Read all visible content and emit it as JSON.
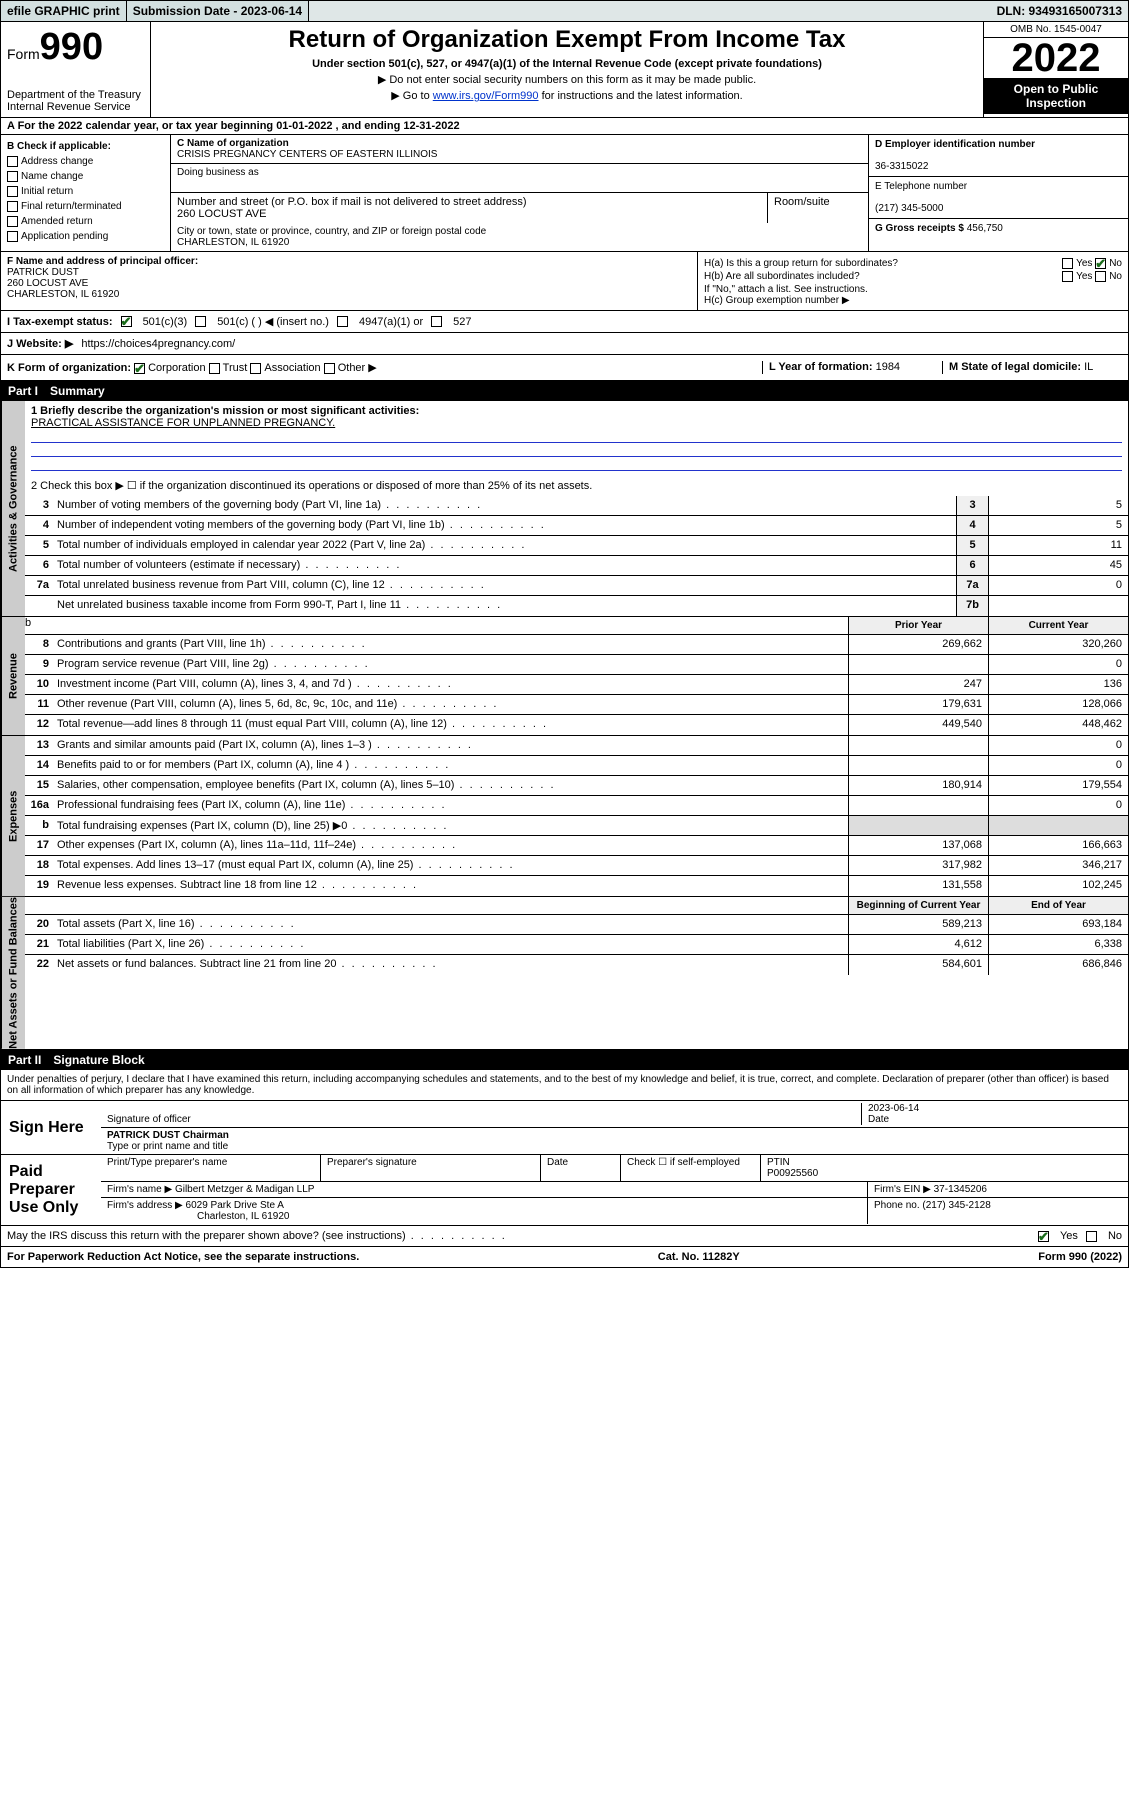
{
  "topbar": {
    "efile": "efile GRAPHIC print",
    "submission_label": "Submission Date - 2023-06-14",
    "dln": "DLN: 93493165007313"
  },
  "header": {
    "form_label": "Form",
    "form_number": "990",
    "dept": "Department of the Treasury",
    "irs": "Internal Revenue Service",
    "title": "Return of Organization Exempt From Income Tax",
    "subtitle": "Under section 501(c), 527, or 4947(a)(1) of the Internal Revenue Code (except private foundations)",
    "note1": "▶ Do not enter social security numbers on this form as it may be made public.",
    "note2_pre": "▶ Go to ",
    "note2_link": "www.irs.gov/Form990",
    "note2_post": " for instructions and the latest information.",
    "omb": "OMB No. 1545-0047",
    "year": "2022",
    "open_public": "Open to Public Inspection"
  },
  "row_a": "A For the 2022 calendar year, or tax year beginning 01-01-2022    , and ending 12-31-2022",
  "col_b": {
    "label": "B Check if applicable:",
    "items": [
      "Address change",
      "Name change",
      "Initial return",
      "Final return/terminated",
      "Amended return",
      "Application pending"
    ]
  },
  "col_c": {
    "name_label": "C Name of organization",
    "name": "CRISIS PREGNANCY CENTERS OF EASTERN ILLINOIS",
    "dba_label": "Doing business as",
    "street_label": "Number and street (or P.O. box if mail is not delivered to street address)",
    "room_label": "Room/suite",
    "street": "260 LOCUST AVE",
    "city_label": "City or town, state or province, country, and ZIP or foreign postal code",
    "city": "CHARLESTON, IL  61920"
  },
  "col_de": {
    "d_label": "D Employer identification number",
    "ein": "36-3315022",
    "e_label": "E Telephone number",
    "phone": "(217) 345-5000",
    "g_label": "G Gross receipts $",
    "gross": "456,750"
  },
  "col_f": {
    "label": "F Name and address of principal officer:",
    "name": "PATRICK DUST",
    "addr1": "260 LOCUST AVE",
    "addr2": "CHARLESTON, IL  61920"
  },
  "col_h": {
    "ha": "H(a)  Is this a group return for subordinates?",
    "hb": "H(b)  Are all subordinates included?",
    "hb_note": "If \"No,\" attach a list. See instructions.",
    "hc": "H(c)  Group exemption number ▶"
  },
  "row_i": {
    "label": "I   Tax-exempt status:",
    "opt1": "501(c)(3)",
    "opt2": "501(c) (  ) ◀ (insert no.)",
    "opt3": "4947(a)(1) or",
    "opt4": "527"
  },
  "row_j": {
    "label": "J   Website: ▶",
    "value": "https://choices4pregnancy.com/"
  },
  "row_k": {
    "label": "K Form of organization:",
    "opts": [
      "Corporation",
      "Trust",
      "Association",
      "Other ▶"
    ],
    "l_label": "L Year of formation:",
    "l_val": "1984",
    "m_label": "M State of legal domicile:",
    "m_val": "IL"
  },
  "part1": {
    "title": "Part I",
    "name": "Summary",
    "line1_label": "1  Briefly describe the organization's mission or most significant activities:",
    "line1_val": "PRACTICAL ASSISTANCE FOR UNPLANNED PREGNANCY.",
    "line2": "2   Check this box ▶ ☐  if the organization discontinued its operations or disposed of more than 25% of its net assets.",
    "sidelabels": {
      "agov": "Activities & Governance",
      "rev": "Revenue",
      "exp": "Expenses",
      "net": "Net Assets or Fund Balances"
    },
    "rows_single": [
      {
        "n": "3",
        "d": "Number of voting members of the governing body (Part VI, line 1a)",
        "box": "3",
        "v": "5"
      },
      {
        "n": "4",
        "d": "Number of independent voting members of the governing body (Part VI, line 1b)",
        "box": "4",
        "v": "5"
      },
      {
        "n": "5",
        "d": "Total number of individuals employed in calendar year 2022 (Part V, line 2a)",
        "box": "5",
        "v": "11"
      },
      {
        "n": "6",
        "d": "Total number of volunteers (estimate if necessary)",
        "box": "6",
        "v": "45"
      },
      {
        "n": "7a",
        "d": "Total unrelated business revenue from Part VIII, column (C), line 12",
        "box": "7a",
        "v": "0"
      },
      {
        "n": " ",
        "d": "Net unrelated business taxable income from Form 990-T, Part I, line 11",
        "box": "7b",
        "v": ""
      }
    ],
    "col_headers": {
      "prior": "Prior Year",
      "current": "Current Year"
    },
    "rows_rev": [
      {
        "n": "8",
        "d": "Contributions and grants (Part VIII, line 1h)",
        "p": "269,662",
        "c": "320,260"
      },
      {
        "n": "9",
        "d": "Program service revenue (Part VIII, line 2g)",
        "p": "",
        "c": "0"
      },
      {
        "n": "10",
        "d": "Investment income (Part VIII, column (A), lines 3, 4, and 7d )",
        "p": "247",
        "c": "136"
      },
      {
        "n": "11",
        "d": "Other revenue (Part VIII, column (A), lines 5, 6d, 8c, 9c, 10c, and 11e)",
        "p": "179,631",
        "c": "128,066"
      },
      {
        "n": "12",
        "d": "Total revenue—add lines 8 through 11 (must equal Part VIII, column (A), line 12)",
        "p": "449,540",
        "c": "448,462"
      }
    ],
    "rows_exp": [
      {
        "n": "13",
        "d": "Grants and similar amounts paid (Part IX, column (A), lines 1–3 )",
        "p": "",
        "c": "0"
      },
      {
        "n": "14",
        "d": "Benefits paid to or for members (Part IX, column (A), line 4 )",
        "p": "",
        "c": "0"
      },
      {
        "n": "15",
        "d": "Salaries, other compensation, employee benefits (Part IX, column (A), lines 5–10)",
        "p": "180,914",
        "c": "179,554"
      },
      {
        "n": "16a",
        "d": "Professional fundraising fees (Part IX, column (A), line 11e)",
        "p": "",
        "c": "0"
      },
      {
        "n": "b",
        "d": "Total fundraising expenses (Part IX, column (D), line 25) ▶0",
        "p": "",
        "c": "",
        "shade": true
      },
      {
        "n": "17",
        "d": "Other expenses (Part IX, column (A), lines 11a–11d, 11f–24e)",
        "p": "137,068",
        "c": "166,663"
      },
      {
        "n": "18",
        "d": "Total expenses. Add lines 13–17 (must equal Part IX, column (A), line 25)",
        "p": "317,982",
        "c": "346,217"
      },
      {
        "n": "19",
        "d": "Revenue less expenses. Subtract line 18 from line 12",
        "p": "131,558",
        "c": "102,245"
      }
    ],
    "col_headers2": {
      "begin": "Beginning of Current Year",
      "end": "End of Year"
    },
    "rows_net": [
      {
        "n": "20",
        "d": "Total assets (Part X, line 16)",
        "p": "589,213",
        "c": "693,184"
      },
      {
        "n": "21",
        "d": "Total liabilities (Part X, line 26)",
        "p": "4,612",
        "c": "6,338"
      },
      {
        "n": "22",
        "d": "Net assets or fund balances. Subtract line 21 from line 20",
        "p": "584,601",
        "c": "686,846"
      }
    ]
  },
  "part2": {
    "title": "Part II",
    "name": "Signature Block",
    "declaration": "Under penalties of perjury, I declare that I have examined this return, including accompanying schedules and statements, and to the best of my knowledge and belief, it is true, correct, and complete. Declaration of preparer (other than officer) is based on all information of which preparer has any knowledge.",
    "sign_here": "Sign Here",
    "sig_officer": "Signature of officer",
    "sig_date": "2023-06-14",
    "date_label": "Date",
    "officer_name": "PATRICK DUST Chairman",
    "type_name": "Type or print name and title",
    "paid": "Paid Preparer Use Only",
    "prep_name_label": "Print/Type preparer's name",
    "prep_sig_label": "Preparer's signature",
    "check_if": "Check ☐ if self-employed",
    "ptin_label": "PTIN",
    "ptin": "P00925560",
    "firm_name_label": "Firm's name    ▶",
    "firm_name": "Gilbert Metzger & Madigan LLP",
    "firm_ein_label": "Firm's EIN ▶",
    "firm_ein": "37-1345206",
    "firm_addr_label": "Firm's address ▶",
    "firm_addr1": "6029 Park Drive Ste A",
    "firm_addr2": "Charleston, IL  61920",
    "phone_label": "Phone no.",
    "phone": "(217) 345-2128",
    "discuss": "May the IRS discuss this return with the preparer shown above? (see instructions)"
  },
  "footer": {
    "paperwork": "For Paperwork Reduction Act Notice, see the separate instructions.",
    "cat": "Cat. No. 11282Y",
    "form": "Form 990 (2022)"
  }
}
